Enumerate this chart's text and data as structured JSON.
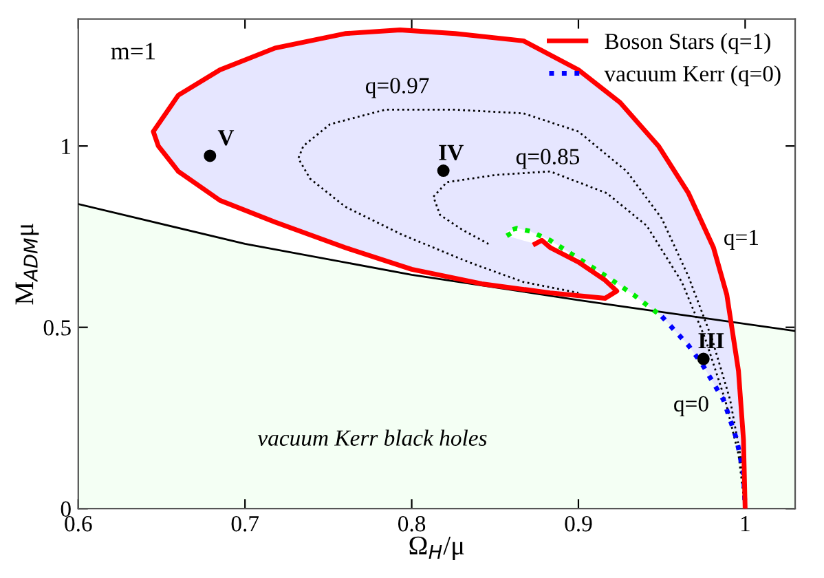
{
  "chart_data": {
    "type": "line",
    "xlabel": "Ω$_{H}$/μ",
    "ylabel": "M$_{ADM}$μ",
    "xlim": [
      0.6,
      1.03
    ],
    "ylim": [
      0,
      1.35
    ],
    "xticks": [
      0.6,
      0.7,
      0.8,
      0.9,
      {
        "value": 1.0,
        "label": "1"
      }
    ],
    "yticks": [
      0,
      0.5,
      1
    ],
    "grid": false,
    "legend": "top right",
    "series": [
      {
        "type": "area",
        "color": "#f4fff4",
        "line_style": "solid",
        "x": [
          0.6,
          0.7,
          0.8,
          0.9,
          0.93,
          1.03
        ],
        "values": [
          0.84,
          0.73,
          0.645,
          0.575,
          0.555,
          0.49
        ]
      },
      {
        "type": "line",
        "color": "#000000",
        "line_style": "dotted",
        "x": [
          1.0,
          0.997,
          0.991,
          0.98,
          0.966,
          0.95,
          0.929,
          0.9,
          0.867,
          0.826,
          0.784,
          0.751,
          0.735,
          0.732,
          0.739,
          0.76,
          0.793,
          0.834,
          0.867,
          0.9
        ],
        "values": [
          0,
          0.15,
          0.3,
          0.47,
          0.64,
          0.8,
          0.93,
          1.04,
          1.09,
          1.1,
          1.1,
          1.06,
          1.0,
          0.966,
          0.91,
          0.833,
          0.758,
          0.68,
          0.625,
          0.595
        ]
      },
      {
        "type": "line",
        "color": "#000000",
        "line_style": "dotted",
        "x": [
          1.0,
          0.996,
          0.988,
          0.976,
          0.962,
          0.941,
          0.917,
          0.883,
          0.85,
          0.821,
          0.813,
          0.817,
          0.83,
          0.846
        ],
        "values": [
          0,
          0.15,
          0.3,
          0.47,
          0.625,
          0.78,
          0.87,
          0.93,
          0.92,
          0.9,
          0.86,
          0.81,
          0.77,
          0.73
        ]
      },
      {
        "type": "line",
        "color": "#00ee00",
        "line_style": "dotted",
        "x": [
          0.859,
          0.857,
          0.863,
          0.871,
          0.883,
          0.9,
          0.917,
          0.933,
          0.95
        ],
        "values": [
          0.75,
          0.765,
          0.773,
          0.765,
          0.74,
          0.69,
          0.64,
          0.59,
          0.53
        ]
      },
      {
        "type": "line",
        "name": "vacuum Kerr (q=0)",
        "color": "#0000ff",
        "line_style": "dotted",
        "x": [
          0.95,
          0.966,
          0.974,
          0.987,
          0.995,
          0.999,
          1.0
        ],
        "values": [
          0.53,
          0.45,
          0.4,
          0.3,
          0.19,
          0.095,
          0
        ]
      },
      {
        "type": "line",
        "name": "Boson Stars (q=1)",
        "color": "#ff0000",
        "line_style": "solid",
        "x": [
          1.0,
          0.999,
          0.996,
          0.989,
          0.981,
          0.966,
          0.948,
          0.925,
          0.9,
          0.867,
          0.826,
          0.793,
          0.76,
          0.718,
          0.685,
          0.66,
          0.645,
          0.648,
          0.66,
          0.685,
          0.718,
          0.76,
          0.8,
          0.842,
          0.883,
          0.916,
          0.923,
          0.916,
          0.9,
          0.883,
          0.878,
          0.874
        ],
        "values": [
          0,
          0.19,
          0.38,
          0.59,
          0.72,
          0.87,
          1.0,
          1.12,
          1.21,
          1.29,
          1.31,
          1.32,
          1.31,
          1.27,
          1.21,
          1.14,
          1.04,
          1.0,
          0.93,
          0.85,
          0.79,
          0.72,
          0.66,
          0.62,
          0.595,
          0.58,
          0.6,
          0.63,
          0.68,
          0.72,
          0.74,
          0.73
        ]
      },
      {
        "type": "scatter",
        "color": "#000000",
        "marker": "circle",
        "x": [
          0.679,
          0.819,
          0.975
        ],
        "values": [
          0.973,
          0.932,
          0.413
        ]
      }
    ],
    "annotations": [
      {
        "text": "V",
        "x": 0.679,
        "y": 0.973
      },
      {
        "text": "IV",
        "x": 0.819,
        "y": 0.932
      },
      {
        "text": "III",
        "x": 0.975,
        "y": 0.413
      },
      "m=1",
      "q=0.97",
      "q=0.85",
      "q=1",
      "q=0",
      "vacuum Kerr black holes"
    ]
  }
}
